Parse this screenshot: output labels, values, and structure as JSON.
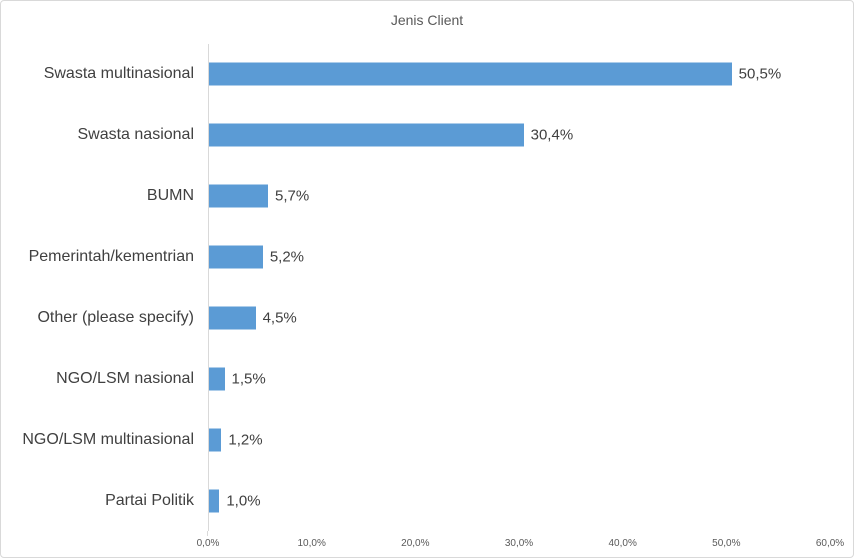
{
  "figure": {
    "background": "#FFFFFF",
    "border_color": "#D9D9D9"
  },
  "chart_data": {
    "type": "bar",
    "orientation": "horizontal",
    "title": "Jenis Client",
    "categories": [
      "Swasta multinasional",
      "Swasta nasional",
      "BUMN",
      "Pemerintah/kementrian",
      "Other (please specify)",
      "NGO/LSM nasional",
      "NGO/LSM multinasional",
      "Partai Politik"
    ],
    "values": [
      50.5,
      30.4,
      5.7,
      5.2,
      4.5,
      1.5,
      1.2,
      1.0
    ],
    "value_labels": [
      "50,5%",
      "30,4%",
      "5,7%",
      "5,2%",
      "4,5%",
      "1,5%",
      "1,2%",
      "1,0%"
    ],
    "x_ticks": [
      "0,0%",
      "10,0%",
      "20,0%",
      "30,0%",
      "40,0%",
      "50,0%",
      "60,0%"
    ],
    "x_tick_values": [
      0,
      10,
      20,
      30,
      40,
      50,
      60
    ],
    "xlim": [
      0,
      60
    ],
    "grid": false,
    "legend": "none",
    "bar_color": "#5B9BD5",
    "axis_line_color": "#D9D9D9",
    "category_label_color": "#404040",
    "value_label_color": "#404040",
    "tick_label_color": "#595959",
    "title_color": "#595959"
  }
}
